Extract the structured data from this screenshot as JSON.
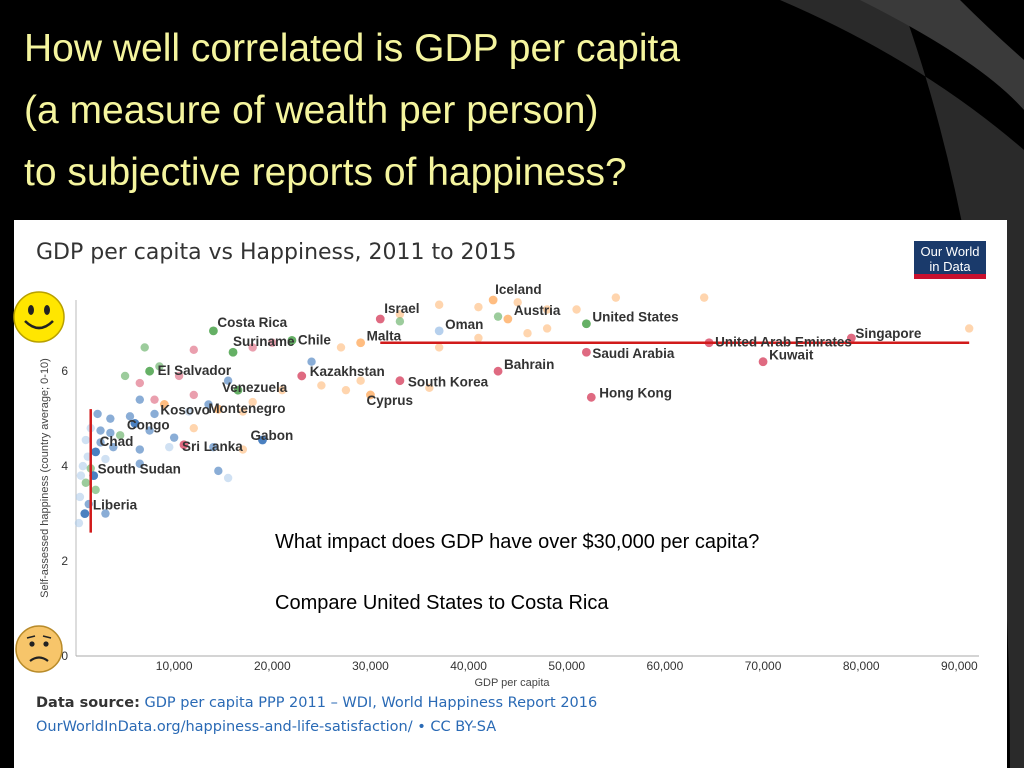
{
  "slide": {
    "title_lines": [
      "How well correlated is GDP per capita",
      "(a measure of wealth per person)",
      "to subjective reports of happiness?"
    ],
    "question_1": "What impact does GDP have over $30,000 per capita?",
    "question_2": "Compare United States to Costa Rica"
  },
  "logo": {
    "line1": "Our World",
    "line2": "in Data"
  },
  "source": {
    "label": "Data source:",
    "text": "GDP per capita PPP 2011 – WDI, World Happiness Report 2016",
    "url_text": "OurWorldInData.org/happiness-and-life-satisfaction/",
    "license": "• CC BY-SA"
  },
  "faces": {
    "top": "smiley-face-icon",
    "bottom": "frown-face-icon"
  },
  "colors": {
    "title_text": "#f5f59e",
    "trend_line": "#d11a1a",
    "africa": "#2a6ab5",
    "europe": "#ffb26b",
    "americas": "#4aa24a",
    "asia": "#d9506b",
    "other": "#a9c8ea"
  },
  "chart_data": {
    "type": "scatter",
    "title": "GDP per capita vs Happiness, 2011 to 2015",
    "xlabel": "GDP per capita",
    "ylabel": "Self-assessed happiness (country average; 0-10)",
    "xlim": [
      0,
      92000
    ],
    "ylim": [
      0,
      7.5
    ],
    "xticks": [
      10000,
      20000,
      30000,
      40000,
      50000,
      60000,
      70000,
      80000,
      90000
    ],
    "xtick_labels": [
      "10,000",
      "20,000",
      "30,000",
      "40,000",
      "50,000",
      "60,000",
      "70,000",
      "80,000",
      "90,000"
    ],
    "yticks": [
      0,
      2,
      4,
      6
    ],
    "ytick_labels": [
      "0",
      "2",
      "4",
      "6"
    ],
    "grid": false,
    "labeled_points": [
      {
        "name": "Iceland",
        "x": 42500,
        "y": 7.5,
        "group": "europe"
      },
      {
        "name": "Israel",
        "x": 31000,
        "y": 7.1,
        "group": "asia"
      },
      {
        "name": "Austria",
        "x": 44000,
        "y": 7.1,
        "group": "europe"
      },
      {
        "name": "Oman",
        "x": 37000,
        "y": 6.85,
        "group": "other"
      },
      {
        "name": "United States",
        "x": 52000,
        "y": 7.0,
        "group": "americas"
      },
      {
        "name": "Costa Rica",
        "x": 14000,
        "y": 6.85,
        "group": "americas"
      },
      {
        "name": "Malta",
        "x": 29000,
        "y": 6.6,
        "group": "europe"
      },
      {
        "name": "Chile",
        "x": 22000,
        "y": 6.65,
        "group": "americas"
      },
      {
        "name": "Suriname",
        "x": 16000,
        "y": 6.4,
        "group": "americas"
      },
      {
        "name": "United Arab Emirates",
        "x": 64500,
        "y": 6.6,
        "group": "asia"
      },
      {
        "name": "Singapore",
        "x": 79000,
        "y": 6.7,
        "group": "asia"
      },
      {
        "name": "Saudi Arabia",
        "x": 52000,
        "y": 6.4,
        "group": "asia"
      },
      {
        "name": "Kuwait",
        "x": 70000,
        "y": 6.2,
        "group": "asia"
      },
      {
        "name": "El Salvador",
        "x": 7500,
        "y": 6.0,
        "group": "americas"
      },
      {
        "name": "Kazakhstan",
        "x": 23000,
        "y": 5.9,
        "group": "asia"
      },
      {
        "name": "Bahrain",
        "x": 43000,
        "y": 6.0,
        "group": "asia"
      },
      {
        "name": "South Korea",
        "x": 33000,
        "y": 5.8,
        "group": "asia"
      },
      {
        "name": "Venezuela",
        "x": 16500,
        "y": 5.6,
        "group": "americas"
      },
      {
        "name": "Cyprus",
        "x": 30000,
        "y": 5.5,
        "group": "europe"
      },
      {
        "name": "Hong Kong",
        "x": 52500,
        "y": 5.45,
        "group": "asia"
      },
      {
        "name": "Kosovo",
        "x": 9000,
        "y": 5.3,
        "group": "europe"
      },
      {
        "name": "Montenegro",
        "x": 14500,
        "y": 5.2,
        "group": "europe"
      },
      {
        "name": "Congo",
        "x": 6000,
        "y": 4.9,
        "group": "africa"
      },
      {
        "name": "Sri Lanka",
        "x": 11000,
        "y": 4.45,
        "group": "asia"
      },
      {
        "name": "Gabon",
        "x": 19000,
        "y": 4.55,
        "group": "africa"
      },
      {
        "name": "Chad",
        "x": 2000,
        "y": 4.3,
        "group": "africa"
      },
      {
        "name": "South Sudan",
        "x": 1800,
        "y": 3.8,
        "group": "africa"
      },
      {
        "name": "Liberia",
        "x": 900,
        "y": 3.0,
        "group": "africa"
      }
    ],
    "unlabeled_points": [
      {
        "x": 33000,
        "y": 7.2,
        "group": "europe"
      },
      {
        "x": 37000,
        "y": 7.4,
        "group": "europe"
      },
      {
        "x": 41000,
        "y": 7.35,
        "group": "europe"
      },
      {
        "x": 45000,
        "y": 7.45,
        "group": "europe"
      },
      {
        "x": 48000,
        "y": 7.3,
        "group": "europe"
      },
      {
        "x": 51000,
        "y": 7.3,
        "group": "europe"
      },
      {
        "x": 55000,
        "y": 7.55,
        "group": "europe"
      },
      {
        "x": 64000,
        "y": 7.55,
        "group": "europe"
      },
      {
        "x": 43000,
        "y": 7.15,
        "group": "americas"
      },
      {
        "x": 33000,
        "y": 7.05,
        "group": "americas"
      },
      {
        "x": 91000,
        "y": 6.9,
        "group": "europe"
      },
      {
        "x": 48000,
        "y": 6.9,
        "group": "europe"
      },
      {
        "x": 46000,
        "y": 6.8,
        "group": "europe"
      },
      {
        "x": 41000,
        "y": 6.7,
        "group": "europe"
      },
      {
        "x": 37000,
        "y": 6.5,
        "group": "europe"
      },
      {
        "x": 27000,
        "y": 6.5,
        "group": "europe"
      },
      {
        "x": 24000,
        "y": 6.2,
        "group": "africa"
      },
      {
        "x": 20000,
        "y": 6.6,
        "group": "asia"
      },
      {
        "x": 18000,
        "y": 6.5,
        "group": "asia"
      },
      {
        "x": 12000,
        "y": 6.45,
        "group": "asia"
      },
      {
        "x": 7000,
        "y": 6.5,
        "group": "americas"
      },
      {
        "x": 5000,
        "y": 5.9,
        "group": "americas"
      },
      {
        "x": 8500,
        "y": 6.1,
        "group": "americas"
      },
      {
        "x": 10500,
        "y": 5.9,
        "group": "asia"
      },
      {
        "x": 6500,
        "y": 5.75,
        "group": "asia"
      },
      {
        "x": 15500,
        "y": 5.8,
        "group": "africa"
      },
      {
        "x": 21000,
        "y": 5.6,
        "group": "europe"
      },
      {
        "x": 25000,
        "y": 5.7,
        "group": "europe"
      },
      {
        "x": 27500,
        "y": 5.6,
        "group": "europe"
      },
      {
        "x": 29000,
        "y": 5.8,
        "group": "europe"
      },
      {
        "x": 36000,
        "y": 5.65,
        "group": "europe"
      },
      {
        "x": 18000,
        "y": 5.35,
        "group": "europe"
      },
      {
        "x": 12000,
        "y": 5.5,
        "group": "asia"
      },
      {
        "x": 8000,
        "y": 5.4,
        "group": "asia"
      },
      {
        "x": 6500,
        "y": 5.4,
        "group": "africa"
      },
      {
        "x": 13500,
        "y": 5.3,
        "group": "africa"
      },
      {
        "x": 11500,
        "y": 5.15,
        "group": "other"
      },
      {
        "x": 17000,
        "y": 5.15,
        "group": "europe"
      },
      {
        "x": 5500,
        "y": 5.05,
        "group": "africa"
      },
      {
        "x": 2200,
        "y": 5.1,
        "group": "africa"
      },
      {
        "x": 3500,
        "y": 5.0,
        "group": "africa"
      },
      {
        "x": 8000,
        "y": 5.1,
        "group": "africa"
      },
      {
        "x": 1500,
        "y": 4.8,
        "group": "other"
      },
      {
        "x": 2500,
        "y": 4.75,
        "group": "africa"
      },
      {
        "x": 3500,
        "y": 4.7,
        "group": "africa"
      },
      {
        "x": 4500,
        "y": 4.65,
        "group": "americas"
      },
      {
        "x": 7500,
        "y": 4.75,
        "group": "africa"
      },
      {
        "x": 10000,
        "y": 4.6,
        "group": "africa"
      },
      {
        "x": 12000,
        "y": 4.8,
        "group": "europe"
      },
      {
        "x": 1000,
        "y": 4.55,
        "group": "other"
      },
      {
        "x": 2500,
        "y": 4.5,
        "group": "africa"
      },
      {
        "x": 3800,
        "y": 4.4,
        "group": "africa"
      },
      {
        "x": 6500,
        "y": 4.35,
        "group": "africa"
      },
      {
        "x": 9500,
        "y": 4.4,
        "group": "other"
      },
      {
        "x": 14000,
        "y": 4.4,
        "group": "africa"
      },
      {
        "x": 17000,
        "y": 4.35,
        "group": "europe"
      },
      {
        "x": 1200,
        "y": 4.2,
        "group": "other"
      },
      {
        "x": 3000,
        "y": 4.15,
        "group": "other"
      },
      {
        "x": 700,
        "y": 4.0,
        "group": "other"
      },
      {
        "x": 1500,
        "y": 3.95,
        "group": "americas"
      },
      {
        "x": 6500,
        "y": 4.05,
        "group": "africa"
      },
      {
        "x": 14500,
        "y": 3.9,
        "group": "africa"
      },
      {
        "x": 500,
        "y": 3.8,
        "group": "other"
      },
      {
        "x": 1000,
        "y": 3.65,
        "group": "americas"
      },
      {
        "x": 2000,
        "y": 3.5,
        "group": "americas"
      },
      {
        "x": 15500,
        "y": 3.75,
        "group": "other"
      },
      {
        "x": 400,
        "y": 3.35,
        "group": "other"
      },
      {
        "x": 1300,
        "y": 3.2,
        "group": "africa"
      },
      {
        "x": 3000,
        "y": 3.0,
        "group": "africa"
      },
      {
        "x": 300,
        "y": 2.8,
        "group": "other"
      }
    ],
    "annotations": {
      "horizontal_line": {
        "x_start": 31000,
        "x_end": 91000,
        "y": 6.6
      },
      "vertical_line": {
        "x": 1500,
        "y_start": 2.6,
        "y_end": 5.2
      }
    }
  }
}
